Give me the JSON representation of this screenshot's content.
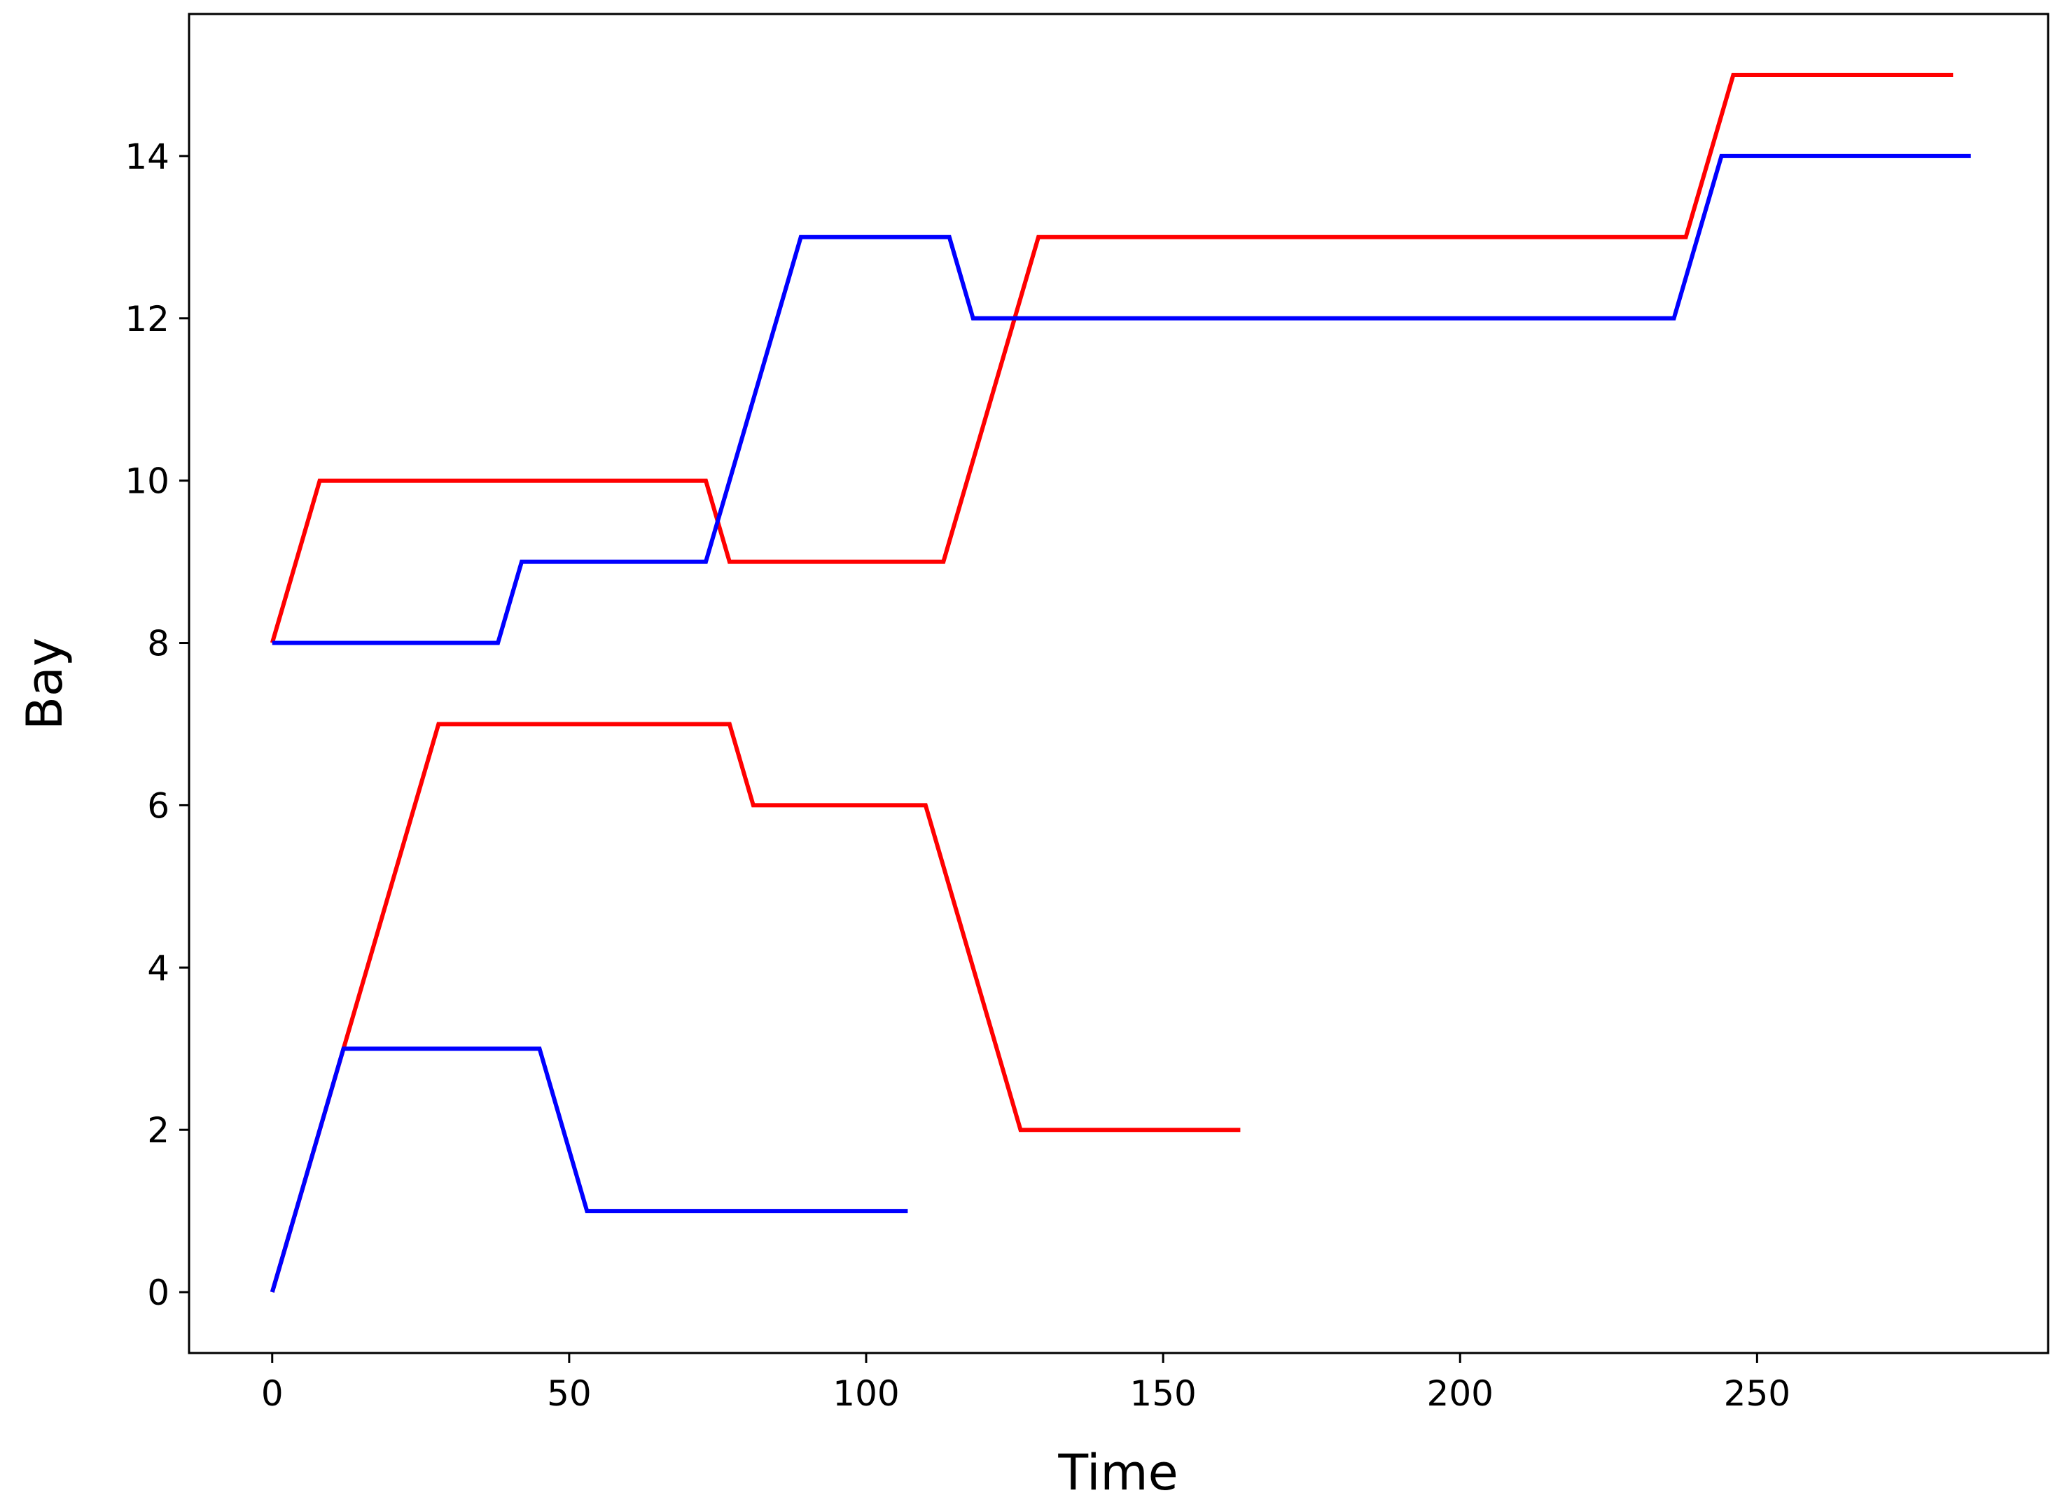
{
  "chart_data": {
    "type": "line",
    "title": "",
    "xlabel": "Time",
    "ylabel": "Bay",
    "xlim": [
      -14,
      299
    ],
    "ylim": [
      -0.75,
      15.75
    ],
    "xticks": [
      0,
      50,
      100,
      150,
      200,
      250
    ],
    "yticks": [
      0,
      2,
      4,
      6,
      8,
      10,
      12,
      14
    ],
    "xtick_labels": [
      "0",
      "50",
      "100",
      "150",
      "200",
      "250"
    ],
    "ytick_labels": [
      "0",
      "2",
      "4",
      "6",
      "8",
      "10",
      "12",
      "14"
    ],
    "grid": false,
    "series": [
      {
        "color": "#ff0000",
        "x": [
          0,
          8,
          73,
          77,
          113,
          129,
          238,
          246,
          283
        ],
        "y": [
          8,
          10,
          10,
          9,
          9,
          13,
          13,
          15,
          15
        ]
      },
      {
        "color": "#ff0000",
        "x": [
          0,
          28,
          77,
          81,
          110,
          126,
          163
        ],
        "y": [
          0,
          7,
          7,
          6,
          6,
          2,
          2
        ]
      },
      {
        "color": "#0000ff",
        "x": [
          0,
          38,
          42,
          73,
          89,
          114,
          118,
          236,
          244,
          286
        ],
        "y": [
          8,
          8,
          9,
          9,
          13,
          13,
          12,
          12,
          14,
          14
        ]
      },
      {
        "color": "#0000ff",
        "x": [
          0,
          12,
          45,
          53,
          107
        ],
        "y": [
          0,
          3,
          3,
          1,
          1
        ]
      }
    ]
  }
}
